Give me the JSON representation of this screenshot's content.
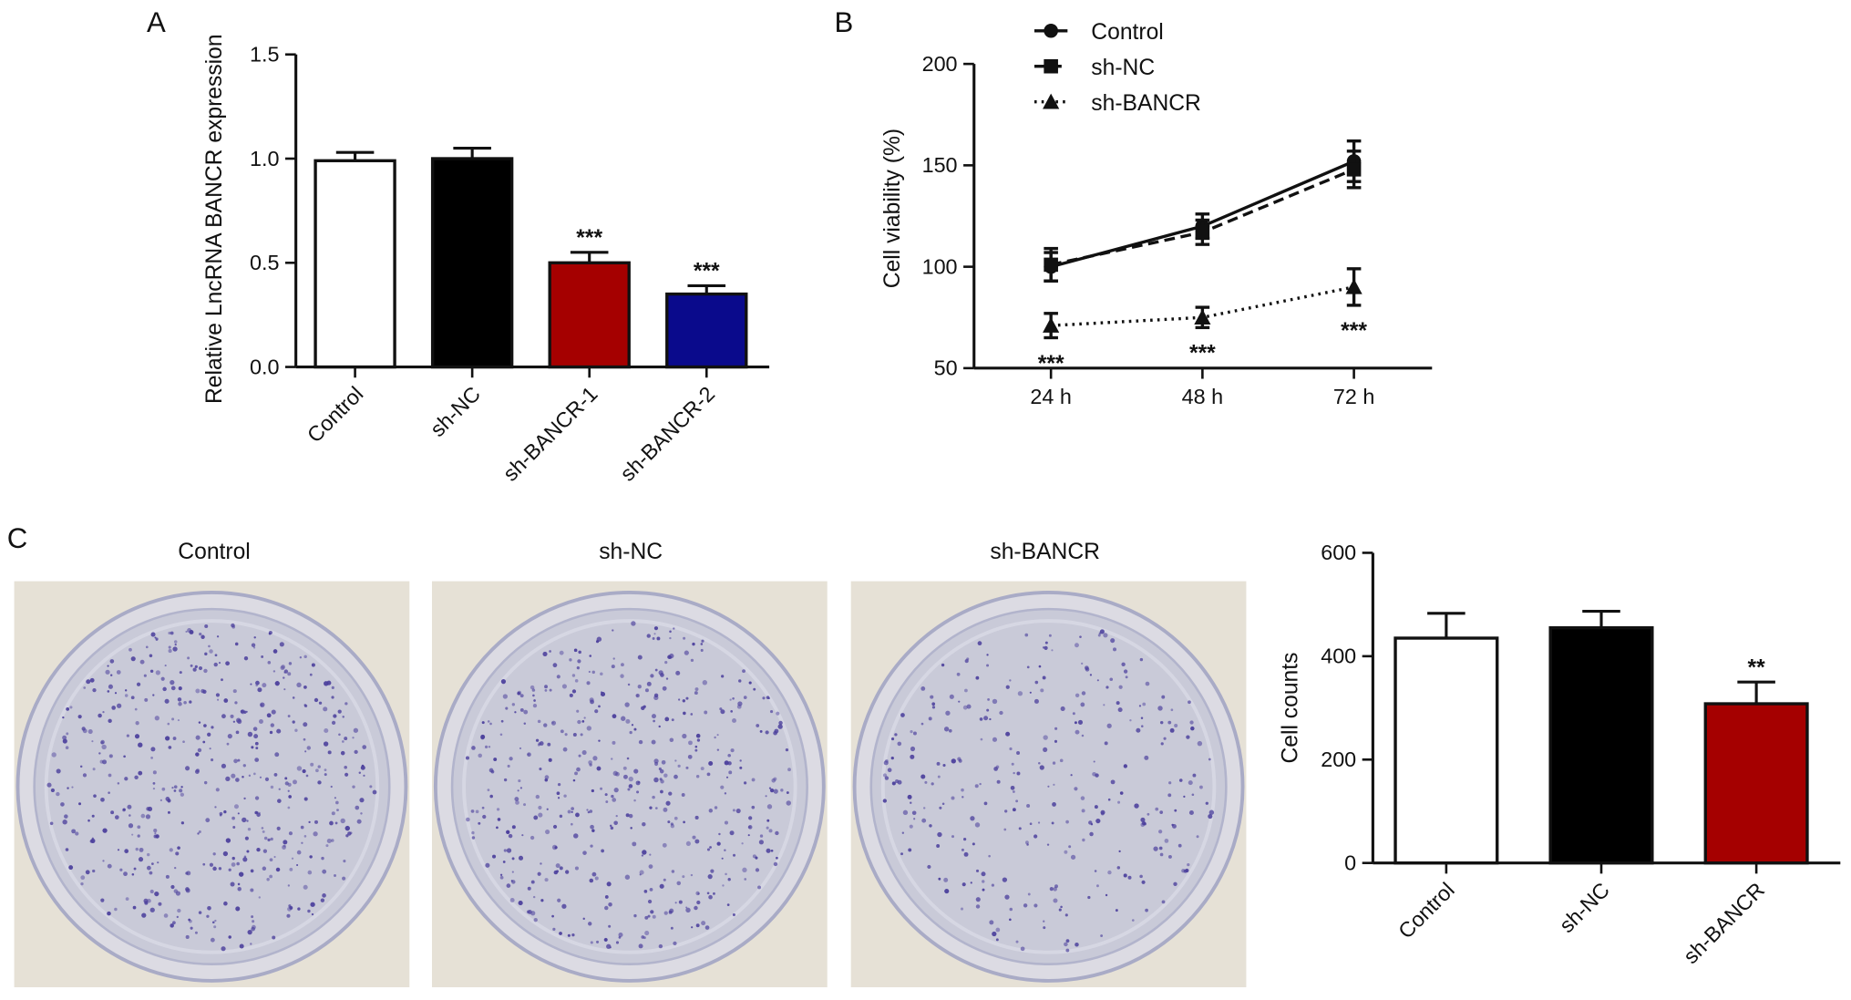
{
  "panel_labels": [
    "A",
    "B",
    "C"
  ],
  "chart_data": [
    {
      "id": "A",
      "type": "bar",
      "categories": [
        "Control",
        "sh-NC",
        "sh-BANCR-1",
        "sh-BANCR-2"
      ],
      "values": [
        0.99,
        1.0,
        0.5,
        0.35
      ],
      "errors": [
        0.04,
        0.05,
        0.05,
        0.04
      ],
      "colors": [
        "#ffffff",
        "#000000",
        "#a50000",
        "#0a0a8c"
      ],
      "annotations": [
        "",
        "",
        "***",
        "***"
      ],
      "ylabel": "Relative LncRNA BANCR expression",
      "ylim": [
        0,
        1.5
      ],
      "yticks": [
        "0.0",
        "0.5",
        "1.0",
        "1.5"
      ],
      "ytick_values": [
        0,
        0.5,
        1.0,
        1.5
      ]
    },
    {
      "id": "B",
      "type": "line",
      "x": [
        "24 h",
        "48 h",
        "72 h"
      ],
      "series": [
        {
          "name": "Control",
          "values": [
            100,
            120,
            152
          ],
          "errors": [
            7,
            6,
            10
          ],
          "marker": "circle",
          "dash": "solid"
        },
        {
          "name": "sh-NC",
          "values": [
            101,
            117,
            148
          ],
          "errors": [
            8,
            6,
            9
          ],
          "marker": "square",
          "dash": "dashed"
        },
        {
          "name": "sh-BANCR",
          "values": [
            71,
            75,
            90
          ],
          "errors": [
            6,
            5,
            9
          ],
          "marker": "triangle",
          "dash": "dotted"
        }
      ],
      "annotations": [
        "***",
        "***",
        "***"
      ],
      "ylabel": "Cell viability (%)",
      "ylim": [
        50,
        200
      ],
      "yticks": [
        "50",
        "100",
        "150",
        "200"
      ],
      "ytick_values": [
        50,
        100,
        150,
        200
      ],
      "legend_position": "top-left"
    },
    {
      "id": "C",
      "type": "bar",
      "categories": [
        "Control",
        "sh-NC",
        "sh-BANCR"
      ],
      "values": [
        435,
        455,
        308
      ],
      "errors": [
        48,
        32,
        42
      ],
      "colors": [
        "#ffffff",
        "#000000",
        "#a50000"
      ],
      "annotations": [
        "",
        "",
        "**"
      ],
      "ylabel": "Cell counts",
      "ylim": [
        0,
        600
      ],
      "yticks": [
        "0",
        "200",
        "400",
        "600"
      ],
      "ytick_values": [
        0,
        200,
        400,
        600
      ]
    }
  ],
  "dishes": {
    "titles": [
      "Control",
      "sh-NC",
      "sh-BANCR"
    ],
    "background_color": "#e6e1d6",
    "plate_color": "#c9cad8",
    "colony_color": "#4b3f9c",
    "colony_density": [
      1.0,
      0.95,
      0.6
    ]
  }
}
